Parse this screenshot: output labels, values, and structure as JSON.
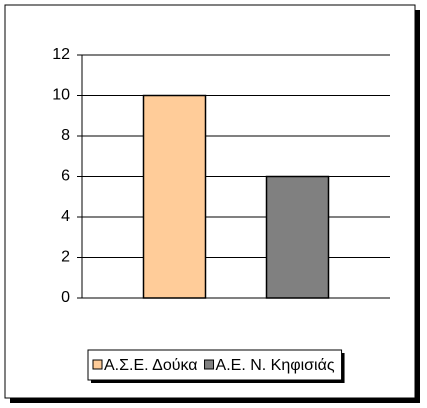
{
  "chart_data": {
    "type": "bar",
    "categories": [
      null
    ],
    "series": [
      {
        "name": "Α.Σ.Ε. Δούκα",
        "color": "#ffcc99",
        "values": [
          10
        ]
      },
      {
        "name": "Α.Ε. Ν. Κηφισιάς",
        "color": "#808080",
        "values": [
          6
        ]
      }
    ],
    "ylim": [
      0,
      12
    ],
    "yticks": [
      0,
      2,
      4,
      6,
      8,
      10,
      12
    ],
    "grid": true,
    "legend": "bottom"
  }
}
